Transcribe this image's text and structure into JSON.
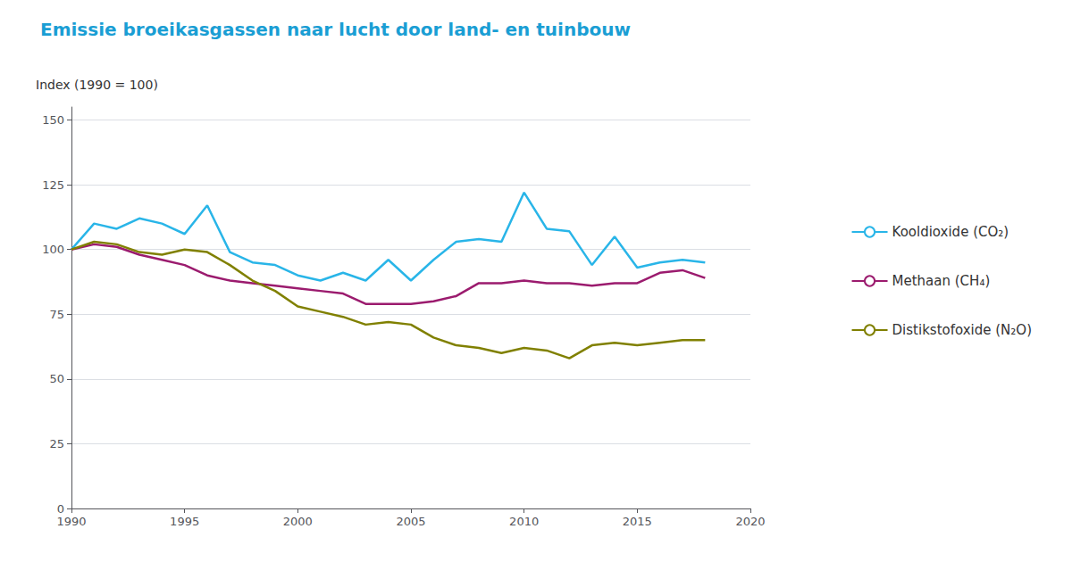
{
  "chart_data": {
    "type": "line",
    "title": "Emissie broeikasgassen naar lucht door land- en tuinbouw",
    "ylabel": "Index (1990 = 100)",
    "x": [
      1990,
      1991,
      1992,
      1993,
      1994,
      1995,
      1996,
      1997,
      1998,
      1999,
      2000,
      2001,
      2002,
      2003,
      2004,
      2005,
      2006,
      2007,
      2008,
      2009,
      2010,
      2011,
      2012,
      2013,
      2014,
      2015,
      2016,
      2017,
      2018
    ],
    "series": [
      {
        "name": "Kooldioxide (CO₂)",
        "color": "#29b5e8",
        "values": [
          100,
          110,
          108,
          112,
          110,
          106,
          117,
          99,
          95,
          94,
          90,
          88,
          91,
          88,
          96,
          88,
          96,
          103,
          104,
          103,
          122,
          108,
          107,
          94,
          105,
          93,
          95,
          96,
          95
        ]
      },
      {
        "name": "Methaan (CH₄)",
        "color": "#9b1b6e",
        "values": [
          100,
          102,
          101,
          98,
          96,
          94,
          90,
          88,
          87,
          86,
          85,
          84,
          83,
          79,
          79,
          79,
          80,
          82,
          87,
          87,
          88,
          87,
          87,
          86,
          87,
          87,
          91,
          92,
          89
        ]
      },
      {
        "name": "Distikstofoxide (N₂O)",
        "color": "#808000",
        "values": [
          100,
          103,
          102,
          99,
          98,
          100,
          99,
          94,
          88,
          84,
          78,
          76,
          74,
          71,
          72,
          71,
          66,
          63,
          62,
          60,
          62,
          61,
          58,
          63,
          64,
          63,
          64,
          65,
          65
        ]
      }
    ],
    "xlim": [
      1990,
      2020
    ],
    "xticks": [
      1990,
      1995,
      2000,
      2005,
      2010,
      2015,
      2020
    ],
    "ylim": [
      0,
      155
    ],
    "yticks": [
      0,
      25,
      50,
      75,
      100,
      125,
      150
    ],
    "grid": true,
    "legend": "right"
  }
}
